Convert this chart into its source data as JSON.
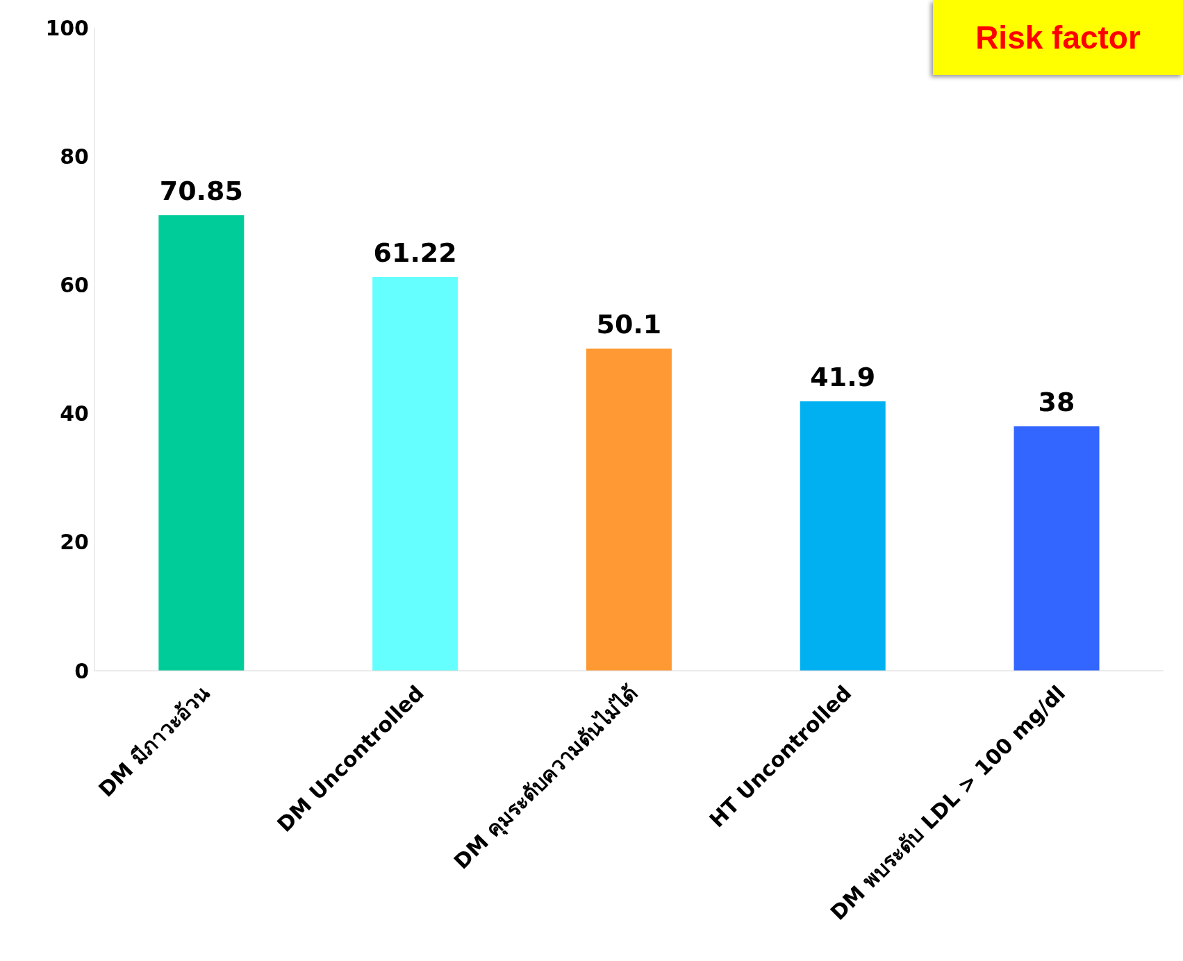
{
  "chart_data": {
    "type": "bar",
    "title": "Risk factor",
    "categories": [
      "DM มีภาวะอ้วน",
      "DM Uncontrolled",
      "DM คุมระดับความดันไม่ได้",
      "HT Uncontrolled",
      "DM พบระดับ LDL > 100 mg/dl"
    ],
    "values": [
      70.85,
      61.22,
      50.1,
      41.9,
      38
    ],
    "colors": [
      "#00cc99",
      "#66ffff",
      "#ff9933",
      "#00b0f0",
      "#3366ff"
    ],
    "ylim": [
      0,
      100
    ],
    "yticks": [
      0,
      20,
      40,
      60,
      80,
      100
    ],
    "grid": false,
    "data_labels": true
  }
}
